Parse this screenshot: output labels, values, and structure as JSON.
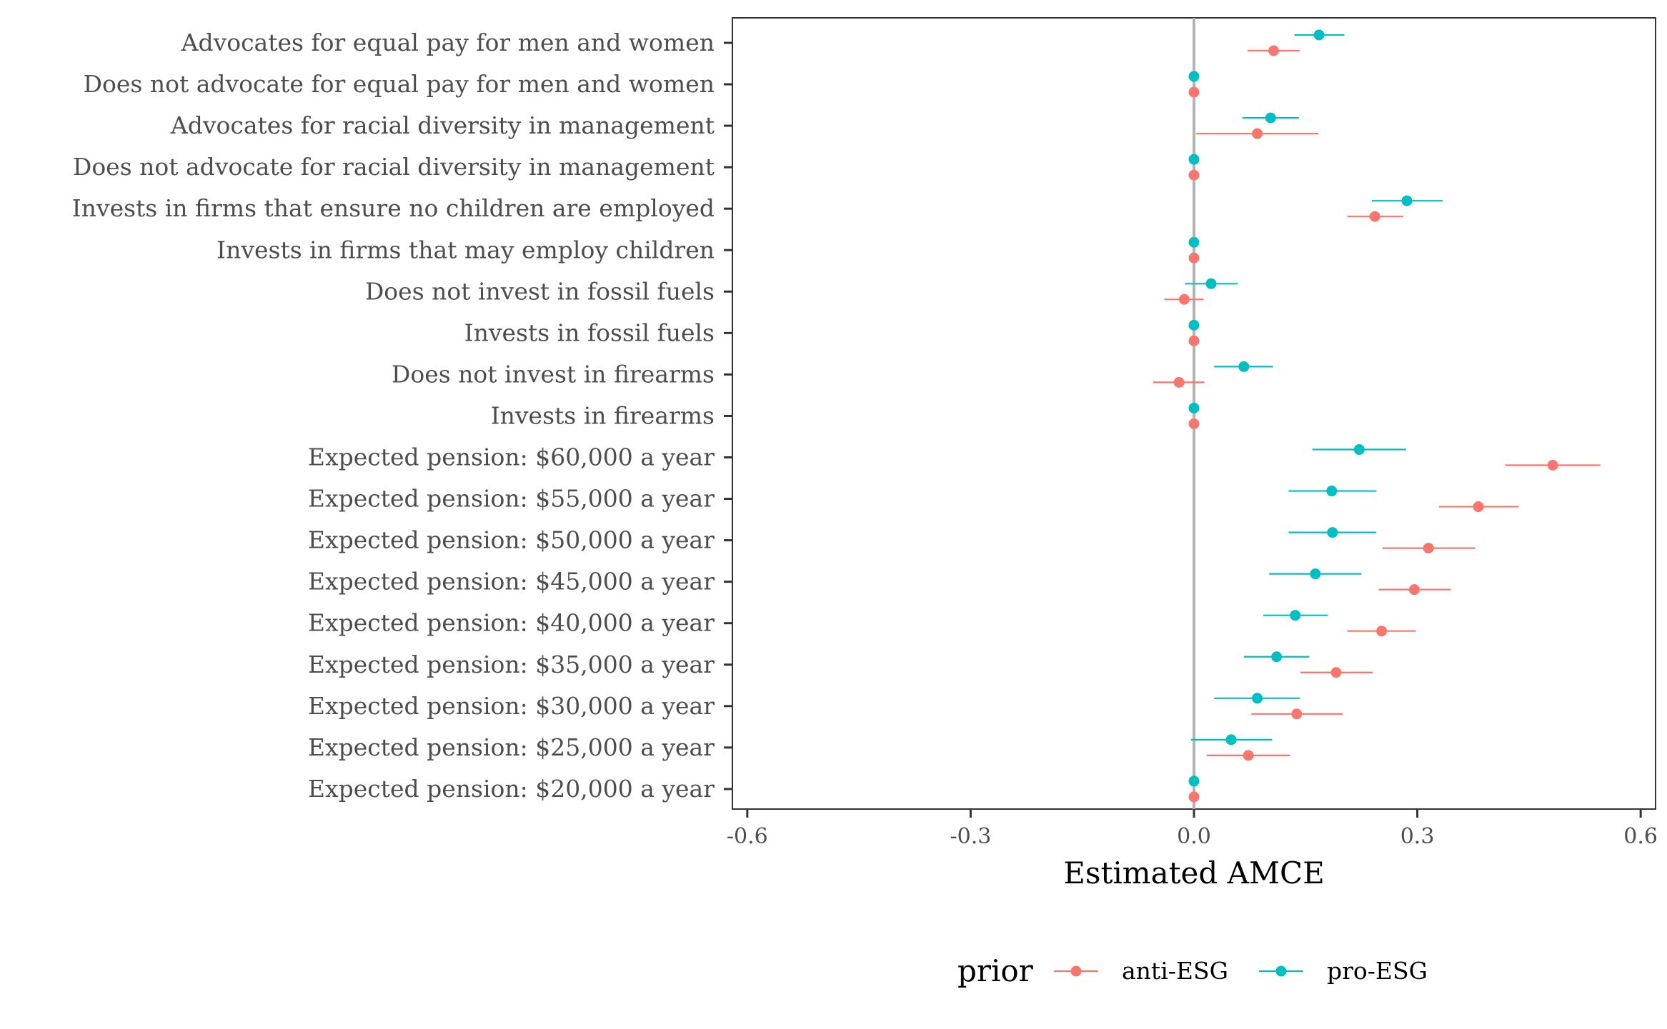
{
  "chart_data": {
    "type": "scatter",
    "subtype": "coefficient-plot",
    "xlabel": "Estimated AMCE",
    "xlim": [
      -0.62,
      0.62
    ],
    "xticks": [
      -0.6,
      -0.3,
      0.0,
      0.3,
      0.6
    ],
    "xtick_labels": [
      "-0.6",
      "-0.3",
      "0.0",
      "0.3",
      "0.6"
    ],
    "reference_line": 0.0,
    "grid": false,
    "legend": {
      "title": "prior",
      "position": "bottom",
      "entries": [
        "anti-ESG",
        "pro-ESG"
      ]
    },
    "categories": [
      "Advocates for equal pay for men and women",
      "Does not advocate for equal pay for men and women",
      "Advocates for racial diversity in management",
      "Does not advocate for racial diversity in management",
      "Invests in firms that ensure no children are employed",
      "Invests in firms that may employ children",
      "Does not invest in fossil fuels",
      "Invests in fossil fuels",
      "Does not invest in firearms",
      "Invests in firearms",
      "Expected pension: $60,000 a year",
      "Expected pension: $55,000 a year",
      "Expected pension: $50,000 a year",
      "Expected pension: $45,000 a year",
      "Expected pension: $40,000 a year",
      "Expected pension: $35,000 a year",
      "Expected pension: $30,000 a year",
      "Expected pension: $25,000 a year",
      "Expected pension: $20,000 a year"
    ],
    "series": [
      {
        "name": "anti-ESG",
        "color": "#F8766D",
        "values": [
          0.107,
          0,
          0.085,
          0,
          0.243,
          0,
          -0.013,
          0,
          -0.02,
          0,
          0.482,
          0.382,
          0.315,
          0.296,
          0.252,
          0.191,
          0.138,
          0.073,
          0
        ],
        "lower": [
          0.072,
          null,
          0.003,
          null,
          0.206,
          null,
          -0.04,
          null,
          -0.055,
          null,
          0.418,
          0.329,
          0.253,
          0.248,
          0.206,
          0.143,
          0.077,
          0.017,
          null
        ],
        "upper": [
          0.142,
          null,
          0.167,
          null,
          0.281,
          null,
          0.013,
          null,
          0.014,
          null,
          0.546,
          0.436,
          0.378,
          0.345,
          0.298,
          0.24,
          0.2,
          0.129,
          null
        ]
      },
      {
        "name": "pro-ESG",
        "color": "#00BFC4",
        "values": [
          0.168,
          0,
          0.103,
          0,
          0.286,
          0,
          0.023,
          0,
          0.067,
          0,
          0.222,
          0.185,
          0.186,
          0.163,
          0.136,
          0.111,
          0.085,
          0.05,
          0
        ],
        "lower": [
          0.135,
          null,
          0.065,
          null,
          0.239,
          null,
          -0.012,
          null,
          0.027,
          null,
          0.159,
          0.127,
          0.127,
          0.101,
          0.093,
          0.067,
          0.027,
          -0.004,
          null
        ],
        "upper": [
          0.202,
          null,
          0.141,
          null,
          0.334,
          null,
          0.059,
          null,
          0.106,
          null,
          0.285,
          0.245,
          0.245,
          0.225,
          0.18,
          0.155,
          0.142,
          0.105,
          null
        ]
      }
    ]
  }
}
